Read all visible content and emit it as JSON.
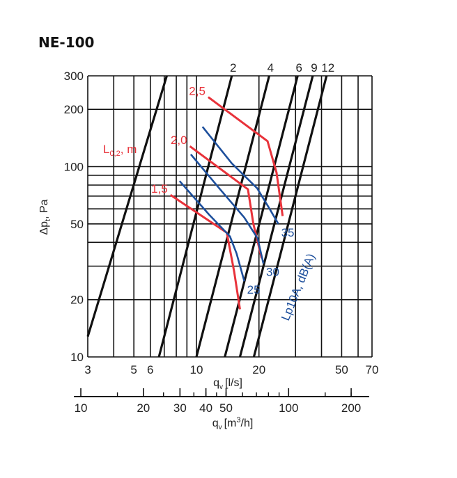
{
  "chart_data": {
    "type": "line",
    "title": "NE-100",
    "xlabel": "q",
    "xlabel_sub": "v",
    "xlabel_unit": "[l/s]",
    "xlabel2": "q",
    "xlabel2_sub": "v",
    "xlabel2_unit": "[m",
    "xlabel2_sup": "3",
    "xlabel2_unit_end": "/h]",
    "ylabel": "Δp",
    "ylabel_sub": "t",
    "ylabel_unit": ", Pa",
    "x_scale": "log",
    "y_scale": "log",
    "xlim": [
      3,
      70
    ],
    "ylim": [
      10,
      300
    ],
    "x2lim": [
      10.8,
      252
    ],
    "grid": true,
    "x_ticks": [
      "3",
      "5",
      "6",
      "10",
      "20",
      "50",
      "70"
    ],
    "x_tick_values": [
      3,
      5,
      6,
      10,
      20,
      50,
      70
    ],
    "x2_ticks": [
      "10",
      "20",
      "30",
      "40",
      "50",
      "100",
      "200"
    ],
    "x2_tick_values": [
      10,
      20,
      30,
      40,
      50,
      100,
      200
    ],
    "y_ticks": [
      "300",
      "200",
      "100",
      "50",
      "20",
      "10"
    ],
    "y_tick_values": [
      300,
      200,
      100,
      50,
      20,
      10
    ],
    "damper_label": "",
    "damper_positions": [
      {
        "label": "2",
        "x": [
          6.6,
          14.8
        ],
        "y": [
          10,
          300
        ]
      },
      {
        "label": "4",
        "x": [
          10.0,
          22.4
        ],
        "y": [
          10,
          300
        ]
      },
      {
        "label": "6",
        "x": [
          13.7,
          30.7
        ],
        "y": [
          10,
          300
        ]
      },
      {
        "label": "9",
        "x": [
          16.2,
          36.3
        ],
        "y": [
          10,
          300
        ]
      },
      {
        "label": "12",
        "x": [
          18.9,
          42.3
        ],
        "y": [
          10,
          300
        ]
      },
      {
        "label": "",
        "x": [
          3.0,
          7.2
        ],
        "y": [
          12.8,
          300
        ]
      }
    ],
    "throw_series_label": "L",
    "throw_series_label_sub": "0,2",
    "throw_series_label_unit": ", m",
    "throw_series": [
      {
        "name": "1,5",
        "x": [
          7.5,
          14.0,
          15.2,
          16.2
        ],
        "y": [
          71,
          45,
          28,
          17.8
        ]
      },
      {
        "name": "2,0",
        "x": [
          9.3,
          17.7,
          18.8,
          20.6
        ],
        "y": [
          128,
          76,
          50,
          33
        ]
      },
      {
        "name": "2,5",
        "x": [
          11.4,
          22.0,
          24.3,
          26.0
        ],
        "y": [
          232,
          136,
          93,
          55
        ]
      }
    ],
    "noise_series_label": "Lp10A, dB(A)",
    "noise_series": [
      {
        "name": "25",
        "x": [
          8.3,
          11.5,
          14.5,
          15.6,
          17.0
        ],
        "y": [
          84,
          56,
          43,
          35,
          25
        ]
      },
      {
        "name": "30",
        "x": [
          9.4,
          13.0,
          17.0,
          19.7,
          21.0
        ],
        "y": [
          116,
          76,
          54,
          42,
          31
        ]
      },
      {
        "name": "35",
        "x": [
          10.7,
          14.8,
          19.6,
          22.3,
          24.8
        ],
        "y": [
          162,
          104,
          77,
          61,
          50
        ]
      }
    ],
    "colors": {
      "damper": "#111111",
      "throw": "#e8323a",
      "noise": "#1d4f9c",
      "grid": "#111111",
      "text": "#222222"
    }
  }
}
